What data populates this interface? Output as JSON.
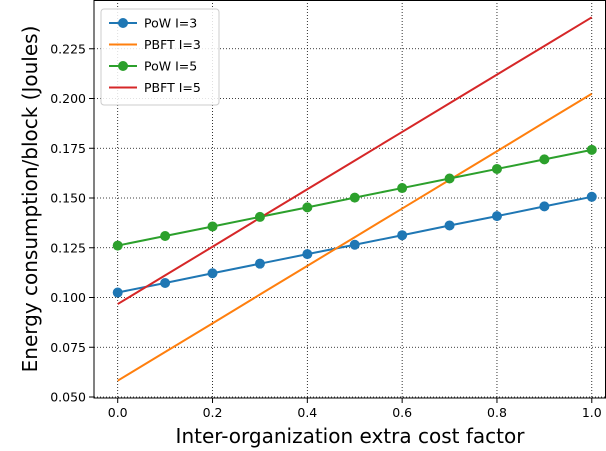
{
  "chart_data": {
    "type": "line",
    "title": "",
    "xlabel": "Inter-organization extra cost factor",
    "ylabel": "Energy consumption/block (Joules)",
    "xlim": [
      -0.05,
      1.03
    ],
    "ylim": [
      0.0495,
      0.2495
    ],
    "xticks": [
      "0.0",
      "0.2",
      "0.4",
      "0.6",
      "0.8",
      "1.0"
    ],
    "xtick_values": [
      0.0,
      0.2,
      0.4,
      0.6,
      0.8,
      1.0
    ],
    "yticks": [
      "0.050",
      "0.075",
      "0.100",
      "0.125",
      "0.150",
      "0.175",
      "0.200",
      "0.225"
    ],
    "ytick_values": [
      0.05,
      0.075,
      0.1,
      0.125,
      0.15,
      0.175,
      0.2,
      0.225
    ],
    "grid": true,
    "legend_position": "top-left",
    "x": [
      0.0,
      0.1,
      0.2,
      0.3,
      0.4,
      0.5,
      0.6,
      0.7,
      0.8,
      0.9,
      1.0
    ],
    "series": [
      {
        "name": "PoW I=3",
        "color": "#1f77b4",
        "marker": "circle",
        "values": [
          0.1025,
          0.1073,
          0.1122,
          0.117,
          0.1218,
          0.1265,
          0.1313,
          0.1362,
          0.1409,
          0.1458,
          0.1506
        ]
      },
      {
        "name": "PBFT I=3",
        "color": "#ff7f0e",
        "marker": "none",
        "values": [
          0.0582,
          0.0726,
          0.087,
          0.1015,
          0.1159,
          0.1303,
          0.1447,
          0.1591,
          0.1735,
          0.188,
          0.2024
        ]
      },
      {
        "name": "PoW I=5",
        "color": "#2ca02c",
        "marker": "circle",
        "values": [
          0.1261,
          0.1309,
          0.1357,
          0.1405,
          0.1453,
          0.1502,
          0.155,
          0.1598,
          0.1646,
          0.1694,
          0.1742
        ]
      },
      {
        "name": "PBFT I=5",
        "color": "#d62728",
        "marker": "none",
        "values": [
          0.0967,
          0.1111,
          0.1255,
          0.14,
          0.1544,
          0.1688,
          0.1832,
          0.1976,
          0.212,
          0.2264,
          0.2408
        ]
      }
    ]
  }
}
